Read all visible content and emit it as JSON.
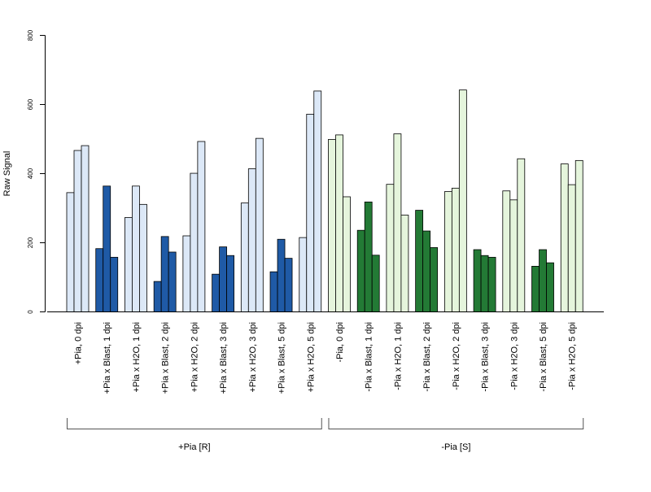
{
  "colors": {
    "light_blue": "#dce8f7",
    "dark_blue": "#1f5aa6",
    "light_green": "#e5f5dc",
    "dark_green": "#237a35"
  },
  "chart_data": {
    "type": "bar",
    "ylabel": "Raw Signal",
    "xlabel": "",
    "ylim": [
      0,
      800
    ],
    "yticks": [
      0,
      200,
      400,
      600,
      800
    ],
    "grid": false,
    "legend": "none",
    "categories": [
      {
        "label": "+Pia, 0 dpi",
        "values": [
          345,
          467,
          481
        ],
        "color": "light_blue"
      },
      {
        "label": "+Pia x Blast, 1 dpi",
        "values": [
          183,
          364,
          158
        ],
        "color": "dark_blue"
      },
      {
        "label": "+Pia x H2O, 1 dpi",
        "values": [
          273,
          364,
          311
        ],
        "color": "light_blue"
      },
      {
        "label": "+Pia x Blast, 2 dpi",
        "values": [
          88,
          218,
          173
        ],
        "color": "dark_blue"
      },
      {
        "label": "+Pia x H2O, 2 dpi",
        "values": [
          220,
          401,
          493
        ],
        "color": "light_blue"
      },
      {
        "label": "+Pia x Blast, 3 dpi",
        "values": [
          109,
          188,
          163
        ],
        "color": "dark_blue"
      },
      {
        "label": "+Pia x H2O, 3 dpi",
        "values": [
          315,
          414,
          502
        ],
        "color": "light_blue"
      },
      {
        "label": "+Pia x Blast, 5 dpi",
        "values": [
          116,
          210,
          155
        ],
        "color": "dark_blue"
      },
      {
        "label": "+Pia x H2O, 5 dpi",
        "values": [
          215,
          572,
          639
        ],
        "color": "light_blue"
      },
      {
        "label": "-Pia, 0 dpi",
        "values": [
          499,
          512,
          333
        ],
        "color": "light_green"
      },
      {
        "label": "-Pia x Blast, 1 dpi",
        "values": [
          236,
          318,
          164
        ],
        "color": "dark_green"
      },
      {
        "label": "-Pia x H2O, 1 dpi",
        "values": [
          369,
          515,
          280
        ],
        "color": "light_green"
      },
      {
        "label": "-Pia x Blast, 2 dpi",
        "values": [
          294,
          234,
          186
        ],
        "color": "dark_green"
      },
      {
        "label": "-Pia x H2O, 2 dpi",
        "values": [
          348,
          358,
          642
        ],
        "color": "light_green"
      },
      {
        "label": "-Pia x Blast, 3 dpi",
        "values": [
          180,
          163,
          158
        ],
        "color": "dark_green"
      },
      {
        "label": "-Pia x H2O, 3 dpi",
        "values": [
          350,
          324,
          443
        ],
        "color": "light_green"
      },
      {
        "label": "-Pia x Blast, 5 dpi",
        "values": [
          132,
          180,
          142
        ],
        "color": "dark_green"
      },
      {
        "label": "-Pia x H2O, 5 dpi",
        "values": [
          428,
          368,
          438
        ],
        "color": "light_green"
      }
    ],
    "groups": [
      {
        "label": "+Pia [R]",
        "from_category": 0,
        "to_category": 8
      },
      {
        "label": "-Pia [S]",
        "from_category": 9,
        "to_category": 17
      }
    ]
  }
}
